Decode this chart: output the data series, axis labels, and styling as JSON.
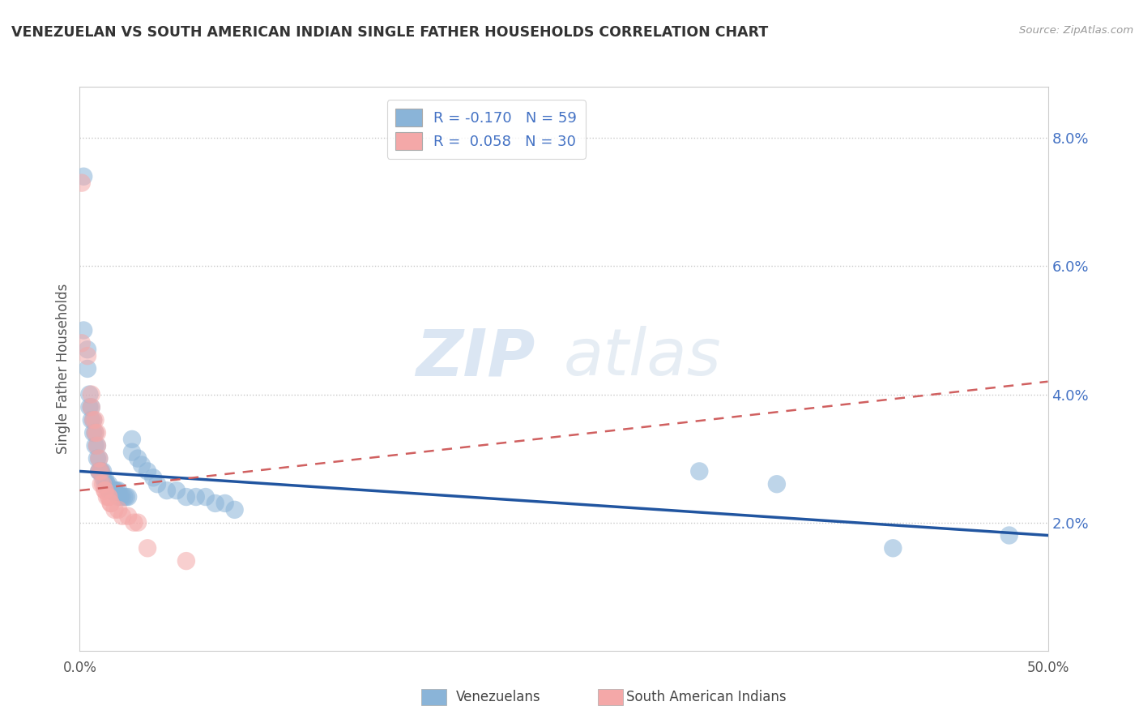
{
  "title": "VENEZUELAN VS SOUTH AMERICAN INDIAN SINGLE FATHER HOUSEHOLDS CORRELATION CHART",
  "source": "Source: ZipAtlas.com",
  "ylabel": "Single Father Households",
  "yticks": [
    "2.0%",
    "4.0%",
    "6.0%",
    "8.0%"
  ],
  "ytick_vals": [
    0.02,
    0.04,
    0.06,
    0.08
  ],
  "xlim": [
    0.0,
    0.5
  ],
  "ylim": [
    0.0,
    0.088
  ],
  "legend_label1": "R = -0.170   N = 59",
  "legend_label2": "R =  0.058   N = 30",
  "watermark_zip": "ZIP",
  "watermark_atlas": "atlas",
  "blue_color": "#8ab4d8",
  "pink_color": "#f4a8a8",
  "blue_line_color": "#2155a0",
  "pink_line_color": "#d06060",
  "blue_trend_x": [
    0.0,
    0.5
  ],
  "blue_trend_y": [
    0.028,
    0.018
  ],
  "pink_trend_x": [
    0.0,
    0.5
  ],
  "pink_trend_y": [
    0.025,
    0.042
  ],
  "blue_dots": [
    [
      0.002,
      0.074
    ],
    [
      0.002,
      0.05
    ],
    [
      0.004,
      0.047
    ],
    [
      0.004,
      0.044
    ],
    [
      0.005,
      0.04
    ],
    [
      0.005,
      0.038
    ],
    [
      0.006,
      0.038
    ],
    [
      0.006,
      0.036
    ],
    [
      0.007,
      0.036
    ],
    [
      0.007,
      0.034
    ],
    [
      0.008,
      0.034
    ],
    [
      0.008,
      0.032
    ],
    [
      0.009,
      0.032
    ],
    [
      0.009,
      0.03
    ],
    [
      0.01,
      0.03
    ],
    [
      0.01,
      0.028
    ],
    [
      0.01,
      0.028
    ],
    [
      0.011,
      0.028
    ],
    [
      0.011,
      0.028
    ],
    [
      0.012,
      0.028
    ],
    [
      0.012,
      0.027
    ],
    [
      0.013,
      0.027
    ],
    [
      0.013,
      0.026
    ],
    [
      0.014,
      0.026
    ],
    [
      0.014,
      0.026
    ],
    [
      0.015,
      0.026
    ],
    [
      0.015,
      0.025
    ],
    [
      0.016,
      0.025
    ],
    [
      0.016,
      0.025
    ],
    [
      0.017,
      0.025
    ],
    [
      0.018,
      0.025
    ],
    [
      0.018,
      0.025
    ],
    [
      0.019,
      0.025
    ],
    [
      0.02,
      0.025
    ],
    [
      0.02,
      0.024
    ],
    [
      0.021,
      0.024
    ],
    [
      0.022,
      0.024
    ],
    [
      0.023,
      0.024
    ],
    [
      0.024,
      0.024
    ],
    [
      0.025,
      0.024
    ],
    [
      0.027,
      0.033
    ],
    [
      0.027,
      0.031
    ],
    [
      0.03,
      0.03
    ],
    [
      0.032,
      0.029
    ],
    [
      0.035,
      0.028
    ],
    [
      0.038,
      0.027
    ],
    [
      0.04,
      0.026
    ],
    [
      0.045,
      0.025
    ],
    [
      0.05,
      0.025
    ],
    [
      0.055,
      0.024
    ],
    [
      0.06,
      0.024
    ],
    [
      0.065,
      0.024
    ],
    [
      0.07,
      0.023
    ],
    [
      0.075,
      0.023
    ],
    [
      0.08,
      0.022
    ],
    [
      0.32,
      0.028
    ],
    [
      0.36,
      0.026
    ],
    [
      0.42,
      0.016
    ],
    [
      0.48,
      0.018
    ]
  ],
  "pink_dots": [
    [
      0.001,
      0.073
    ],
    [
      0.001,
      0.048
    ],
    [
      0.004,
      0.046
    ],
    [
      0.006,
      0.04
    ],
    [
      0.006,
      0.038
    ],
    [
      0.007,
      0.036
    ],
    [
      0.008,
      0.036
    ],
    [
      0.008,
      0.034
    ],
    [
      0.009,
      0.034
    ],
    [
      0.009,
      0.032
    ],
    [
      0.01,
      0.03
    ],
    [
      0.01,
      0.028
    ],
    [
      0.011,
      0.028
    ],
    [
      0.011,
      0.026
    ],
    [
      0.012,
      0.026
    ],
    [
      0.013,
      0.025
    ],
    [
      0.013,
      0.025
    ],
    [
      0.014,
      0.024
    ],
    [
      0.015,
      0.024
    ],
    [
      0.015,
      0.024
    ],
    [
      0.016,
      0.023
    ],
    [
      0.016,
      0.023
    ],
    [
      0.018,
      0.022
    ],
    [
      0.02,
      0.022
    ],
    [
      0.022,
      0.021
    ],
    [
      0.025,
      0.021
    ],
    [
      0.028,
      0.02
    ],
    [
      0.03,
      0.02
    ],
    [
      0.035,
      0.016
    ],
    [
      0.055,
      0.014
    ]
  ]
}
